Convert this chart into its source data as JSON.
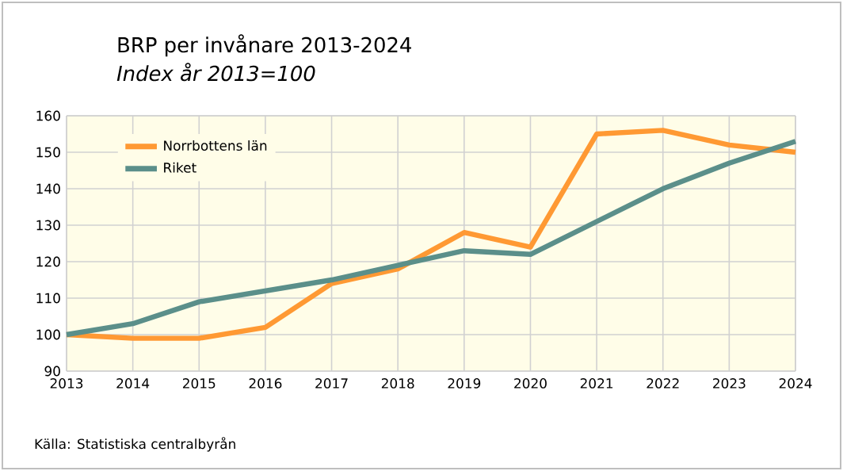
{
  "chart_data": {
    "type": "line",
    "title": "BRP per invånare 2013-2024",
    "subtitle": "Index år 2013=100",
    "x": [
      2013,
      2014,
      2015,
      2016,
      2017,
      2018,
      2019,
      2020,
      2021,
      2022,
      2023,
      2024
    ],
    "series": [
      {
        "name": "Norrbottens län",
        "color": "#ff9933",
        "values": [
          100,
          99,
          99,
          102,
          114,
          118,
          128,
          124,
          155,
          156,
          152,
          150
        ]
      },
      {
        "name": "Riket",
        "color": "#5b8f8a",
        "values": [
          100,
          103,
          109,
          112,
          115,
          119,
          123,
          122,
          131,
          140,
          147,
          153
        ]
      }
    ],
    "xlim": [
      2013,
      2024
    ],
    "xticks": [
      2013,
      2014,
      2015,
      2016,
      2017,
      2018,
      2019,
      2020,
      2021,
      2022,
      2023,
      2024
    ],
    "ylim": [
      90,
      160
    ],
    "yticks": [
      90,
      100,
      110,
      120,
      130,
      140,
      150,
      160
    ],
    "grid": true,
    "legend": "top left",
    "marker": "none",
    "line_style": "solid",
    "annotations": [
      "Källa: Statistiska centralbyrån"
    ]
  }
}
